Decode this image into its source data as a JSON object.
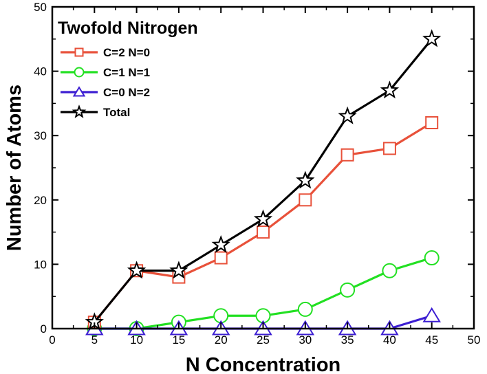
{
  "chart_data": {
    "type": "line",
    "title": "",
    "xlabel": "N Concentration",
    "ylabel": "Number of Atoms",
    "xlim": [
      0,
      50
    ],
    "ylim": [
      0,
      50
    ],
    "xticks": [
      0,
      5,
      10,
      15,
      20,
      25,
      30,
      35,
      40,
      45,
      50
    ],
    "yticks": [
      0,
      10,
      20,
      30,
      40,
      50
    ],
    "legend_title": "Twofold Nitrogen",
    "legend_position": "top-left",
    "grid": false,
    "x": [
      5,
      10,
      15,
      20,
      25,
      30,
      35,
      40,
      45
    ],
    "series": [
      {
        "name": "C=2 N=0",
        "color": "#e8513a",
        "marker": "square",
        "values": [
          1,
          9,
          8,
          11,
          15,
          20,
          27,
          28,
          32
        ]
      },
      {
        "name": "C=1 N=1",
        "color": "#22e022",
        "marker": "circle",
        "values": [
          0,
          0,
          1,
          2,
          2,
          3,
          6,
          9,
          11
        ]
      },
      {
        "name": "C=0 N=2",
        "color": "#3c1ed2",
        "marker": "triangle",
        "values": [
          0,
          0,
          0,
          0,
          0,
          0,
          0,
          0,
          2
        ]
      },
      {
        "name": "Total",
        "color": "#000000",
        "marker": "star",
        "values": [
          1,
          9,
          9,
          13,
          17,
          23,
          33,
          37,
          45
        ]
      }
    ]
  }
}
